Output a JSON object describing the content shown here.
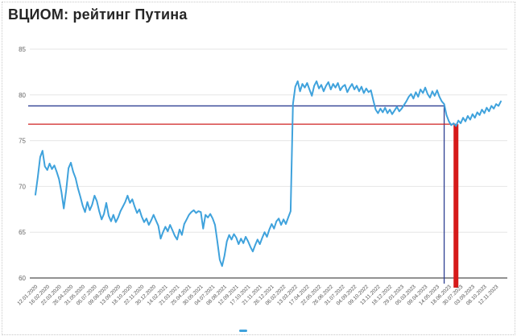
{
  "page": {
    "title": "ВЦИОМ: рейтинг Путина"
  },
  "colors": {
    "series_line": "#3fa2dc",
    "blue_marker": "#2e3f92",
    "red_marker": "#cf2020",
    "red_marker_thick": "#d61a1a",
    "gridline": "#e6e6e6",
    "axis_line": "#262626",
    "y_label": "#666666",
    "x_label": "#555555",
    "title_text": "#262626",
    "frame_border": "#c9c9c9",
    "background": "#ffffff"
  },
  "legend": {
    "sample_color": "#3fa2dc"
  },
  "chart_data": {
    "type": "line",
    "title": "ВЦИОМ: рейтинг Путина",
    "ylim": [
      60,
      85
    ],
    "yticks": [
      60,
      65,
      70,
      75,
      80,
      85
    ],
    "grid": "horizontal-only",
    "legend_position": "bottom-center-cutoff",
    "x_tick_every": 5,
    "x_tick_labels": [
      "12.01.2020",
      "16.02.2020",
      "22.03.2020",
      "26.04.2020",
      "31.05.2020",
      "05.07.2020",
      "09.08.2020",
      "13.09.2020",
      "18.10.2020",
      "22.11.2020",
      "30.12.2020",
      "14.02.2021",
      "21.03.2021",
      "25.04.2021",
      "30.05.2021",
      "04.07.2021",
      "08.08.2021",
      "12.09.2021",
      "17.10.2021",
      "21.11.2021",
      "26.12.2021",
      "06.02.2022",
      "13.03.2022",
      "17.04.2022",
      "22.05.2022",
      "26.06.2022",
      "31.07.2022",
      "04.09.2022",
      "09.10.2022",
      "13.11.2022",
      "18.12.2022",
      "29.01.2023",
      "05.03.2023",
      "09.04.2023",
      "14.05.2023",
      "18.06.2023",
      "30.07.2023",
      "03.09.2023",
      "08.10.2023",
      "12.11.2023"
    ],
    "series": [
      {
        "name": "рейтинг Путина",
        "color": "#3fa2dc",
        "values": [
          69.1,
          71.0,
          73.2,
          73.9,
          72.2,
          71.8,
          72.5,
          71.9,
          72.3,
          71.6,
          70.8,
          69.4,
          67.6,
          69.5,
          72.0,
          72.6,
          71.6,
          70.9,
          69.8,
          68.9,
          67.9,
          67.2,
          68.3,
          67.4,
          68.0,
          69.0,
          68.4,
          67.3,
          66.4,
          67.0,
          68.2,
          66.8,
          66.2,
          66.9,
          66.1,
          66.6,
          67.3,
          67.8,
          68.3,
          69.0,
          68.2,
          68.6,
          67.8,
          67.1,
          67.5,
          66.7,
          66.1,
          66.5,
          65.8,
          66.3,
          66.9,
          66.3,
          65.7,
          64.3,
          65.0,
          65.6,
          65.1,
          65.8,
          65.2,
          64.6,
          64.2,
          65.3,
          64.7,
          65.9,
          66.4,
          66.9,
          67.2,
          67.4,
          67.1,
          67.3,
          67.2,
          65.4,
          66.9,
          66.6,
          67.0,
          66.5,
          65.8,
          64.0,
          62.0,
          61.3,
          62.4,
          64.0,
          64.7,
          64.2,
          64.8,
          64.4,
          63.7,
          64.3,
          63.8,
          64.5,
          64.0,
          63.4,
          62.9,
          63.6,
          64.2,
          63.7,
          64.4,
          65.0,
          64.5,
          65.3,
          65.9,
          65.4,
          66.2,
          66.5,
          65.8,
          66.4,
          65.9,
          66.6,
          67.3,
          79.0,
          80.9,
          81.5,
          80.4,
          81.2,
          80.8,
          81.3,
          80.6,
          79.9,
          81.0,
          81.5,
          80.7,
          81.1,
          80.4,
          81.0,
          81.4,
          80.6,
          81.2,
          80.8,
          81.3,
          80.5,
          80.9,
          81.1,
          80.3,
          80.8,
          81.2,
          80.6,
          81.0,
          80.4,
          80.9,
          80.2,
          80.7,
          80.3,
          80.5,
          79.4,
          78.4,
          78.0,
          78.5,
          78.1,
          78.6,
          78.0,
          78.4,
          77.9,
          78.3,
          78.7,
          78.2,
          78.5,
          78.9,
          79.3,
          79.8,
          80.1,
          79.6,
          80.3,
          79.8,
          80.6,
          80.2,
          80.8,
          80.1,
          79.7,
          80.4,
          79.9,
          80.5,
          79.8,
          79.3,
          79.0,
          77.8,
          77.1,
          76.7,
          76.9,
          76.6,
          77.2,
          76.9,
          77.5,
          77.1,
          77.7,
          77.3,
          77.9,
          77.5,
          78.1,
          77.8,
          78.4,
          78.0,
          78.6,
          78.2,
          78.8,
          78.5,
          79.0,
          78.8,
          79.3
        ]
      }
    ],
    "annotations": [
      {
        "name": "blue-crosshair",
        "level": 78.8,
        "at_index": 173,
        "color": "#2e3f92",
        "thickness": 1.3
      },
      {
        "name": "red-crosshair",
        "level": 76.8,
        "at_index": 178,
        "color": "#cf2020",
        "thickness": 1.3,
        "vertical_thickness": 6,
        "vertical_color": "#d61a1a"
      }
    ]
  }
}
